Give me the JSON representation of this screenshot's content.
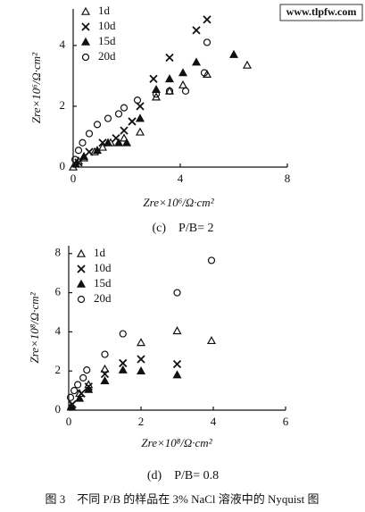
{
  "watermark": "www.tlpfw.com",
  "figure_caption": "图 3　不同 P/B 的样品在 3% NaCl 溶液中的 Nyquist 图",
  "chart_data": [
    {
      "type": "scatter",
      "caption": "(c)　P/B= 2",
      "x_label": "Zre×10⁶/Ω·cm²",
      "y_label": "Zre×10⁶/Ω·cm²",
      "xlim": [
        0,
        8
      ],
      "ylim": [
        0,
        5.2
      ],
      "xticks": [
        0,
        4,
        8
      ],
      "yticks": [
        0,
        2,
        4
      ],
      "series": [
        {
          "name": "1d",
          "marker": "open-triangle",
          "color": "#111",
          "x": [
            0,
            0.2,
            0.4,
            0.8,
            1.1,
            1.4,
            1.9,
            2.5,
            3.1,
            3.6,
            4.1,
            5.0,
            6.5
          ],
          "values": [
            0,
            0.2,
            0.3,
            0.5,
            0.65,
            0.8,
            0.95,
            1.15,
            2.3,
            2.5,
            2.7,
            3.05,
            3.35
          ]
        },
        {
          "name": "10d",
          "marker": "x",
          "color": "#111",
          "x": [
            0.2,
            0.6,
            1.1,
            1.6,
            1.9,
            2.2,
            2.5,
            3.0,
            3.6,
            4.6,
            5.0
          ],
          "values": [
            0.15,
            0.5,
            0.8,
            0.95,
            1.2,
            1.5,
            2.0,
            2.9,
            3.6,
            4.5,
            4.85
          ]
        },
        {
          "name": "15d",
          "marker": "filled-triangle",
          "color": "#111",
          "x": [
            0.1,
            0.4,
            0.9,
            1.3,
            1.7,
            2.0,
            2.5,
            3.1,
            3.6,
            4.1,
            4.6,
            6.0
          ],
          "values": [
            0.1,
            0.35,
            0.55,
            0.8,
            0.8,
            0.8,
            1.6,
            2.55,
            2.9,
            3.1,
            3.45,
            3.7
          ]
        },
        {
          "name": "20d",
          "marker": "open-circle",
          "color": "#111",
          "x": [
            0.07,
            0.2,
            0.35,
            0.6,
            0.9,
            1.3,
            1.7,
            1.9,
            2.4,
            3.1,
            3.6,
            4.2,
            4.9,
            5.0
          ],
          "values": [
            0.25,
            0.55,
            0.8,
            1.1,
            1.4,
            1.6,
            1.75,
            1.95,
            2.2,
            2.4,
            2.5,
            2.5,
            3.1,
            4.1
          ]
        }
      ]
    },
    {
      "type": "scatter",
      "caption": "(d)　P/B= 0.8",
      "x_label": "Zre×10⁸/Ω·cm²",
      "y_label": "Zre×10⁸/Ω·cm²",
      "xlim": [
        0,
        6
      ],
      "ylim": [
        0,
        8.4
      ],
      "xticks": [
        0,
        2,
        4,
        6
      ],
      "yticks": [
        0,
        2,
        4,
        6,
        8
      ],
      "series": [
        {
          "name": "1d",
          "marker": "open-triangle",
          "color": "#111",
          "x": [
            0.07,
            0.3,
            0.55,
            1.0,
            2.0,
            3.0,
            3.95
          ],
          "values": [
            0.2,
            0.85,
            1.3,
            2.1,
            3.45,
            4.05,
            3.55
          ]
        },
        {
          "name": "10d",
          "marker": "x",
          "color": "#111",
          "x": [
            0.1,
            0.35,
            0.55,
            1.0,
            1.5,
            2.0,
            3.0
          ],
          "values": [
            0.3,
            0.85,
            1.2,
            1.85,
            2.4,
            2.6,
            2.35
          ]
        },
        {
          "name": "15d",
          "marker": "filled-triangle",
          "color": "#111",
          "x": [
            0.07,
            0.3,
            0.55,
            1.0,
            1.5,
            2.0,
            3.0
          ],
          "values": [
            0.15,
            0.6,
            1.05,
            1.5,
            2.05,
            2.0,
            1.8
          ]
        },
        {
          "name": "20d",
          "marker": "open-circle",
          "color": "#111",
          "x": [
            0.05,
            0.15,
            0.25,
            0.4,
            0.5,
            1.0,
            1.5,
            3.0,
            3.95
          ],
          "values": [
            0.65,
            1.0,
            1.3,
            1.65,
            2.05,
            2.85,
            3.9,
            6.0,
            7.65
          ]
        }
      ]
    }
  ]
}
